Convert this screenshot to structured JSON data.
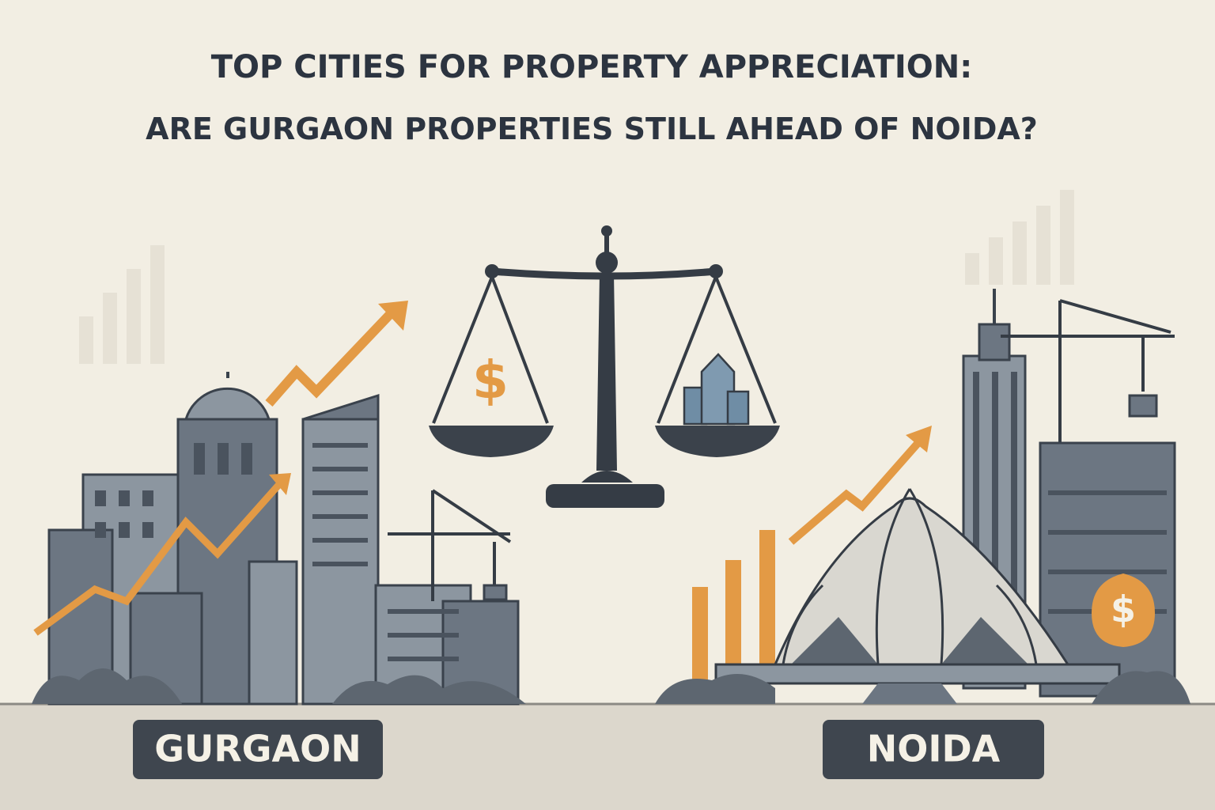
{
  "header": {
    "title_line1": "TOP CITIES FOR PROPERTY APPRECIATION:",
    "title_line2": "ARE GURGAON PROPERTIES STILL AHEAD OF NOIDA?"
  },
  "labels": {
    "left": "GURGAON",
    "right": "NOIDA"
  },
  "icons": {
    "scale_pan_symbol": "$",
    "money_bag_symbol": "$"
  }
}
